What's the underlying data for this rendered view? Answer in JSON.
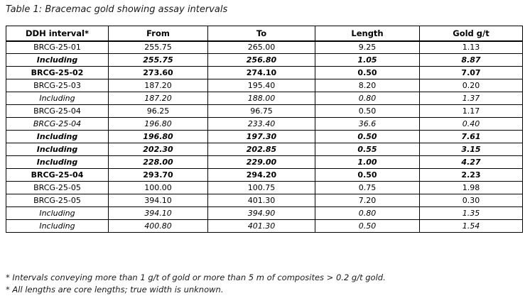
{
  "title": "Table 1: Bracemac gold showing assay intervals",
  "table": {
    "headers": [
      "DDH interval*",
      "From",
      "To",
      "Length",
      "Gold g/t"
    ],
    "rows": [
      {
        "interval": "BRCG-25-01",
        "from": "255.75",
        "to": "265.00",
        "length": "9.25",
        "gold": "1.13",
        "emphasis": "normal"
      },
      {
        "interval": "Including",
        "from": "255.75",
        "to": "256.80",
        "length": "1.05",
        "gold": "8.87",
        "emphasis": "bold-italic"
      },
      {
        "interval": "BRCG-25-02",
        "from": "273.60",
        "to": "274.10",
        "length": "0.50",
        "gold": "7.07",
        "emphasis": "bold"
      },
      {
        "interval": "BRCG-25-03",
        "from": "187.20",
        "to": "195.40",
        "length": "8.20",
        "gold": "0.20",
        "emphasis": "normal"
      },
      {
        "interval": "Including",
        "from": "187.20",
        "to": "188.00",
        "length": "0.80",
        "gold": "1.37",
        "emphasis": "italic"
      },
      {
        "interval": "BRCG-25-04",
        "from": "96.25",
        "to": "96.75",
        "length": "0.50",
        "gold": "1.17",
        "emphasis": "normal"
      },
      {
        "interval": "BRCG-25-04",
        "from": "196.80",
        "to": "233.40",
        "length": "36.6",
        "gold": "0.40",
        "emphasis": "italic"
      },
      {
        "interval": "Including",
        "from": "196.80",
        "to": "197.30",
        "length": "0.50",
        "gold": "7.61",
        "emphasis": "bold-italic"
      },
      {
        "interval": "Including",
        "from": "202.30",
        "to": "202.85",
        "length": "0.55",
        "gold": "3.15",
        "emphasis": "bold-italic"
      },
      {
        "interval": "Including",
        "from": "228.00",
        "to": "229.00",
        "length": "1.00",
        "gold": "4.27",
        "emphasis": "bold-italic"
      },
      {
        "interval": "BRCG-25-04",
        "from": "293.70",
        "to": "294.20",
        "length": "0.50",
        "gold": "2.23",
        "emphasis": "bold"
      },
      {
        "interval": "BRCG-25-05",
        "from": "100.00",
        "to": "100.75",
        "length": "0.75",
        "gold": "1.98",
        "emphasis": "normal"
      },
      {
        "interval": "BRCG-25-05",
        "from": "394.10",
        "to": "401.30",
        "length": "7.20",
        "gold": "0.30",
        "emphasis": "normal"
      },
      {
        "interval": "Including",
        "from": "394.10",
        "to": "394.90",
        "length": "0.80",
        "gold": "1.35",
        "emphasis": "italic"
      },
      {
        "interval": "Including",
        "from": "400.80",
        "to": "401.30",
        "length": "0.50",
        "gold": "1.54",
        "emphasis": "italic"
      }
    ]
  },
  "footnotes": [
    "* Intervals conveying more than 1 g/t of gold or more than 5 m of composites > 0.2 g/t gold.",
    "* All lengths are core lengths; true width is unknown."
  ],
  "colors": {
    "text": "#1a1a1a",
    "border": "#000000",
    "background": "#ffffff"
  }
}
